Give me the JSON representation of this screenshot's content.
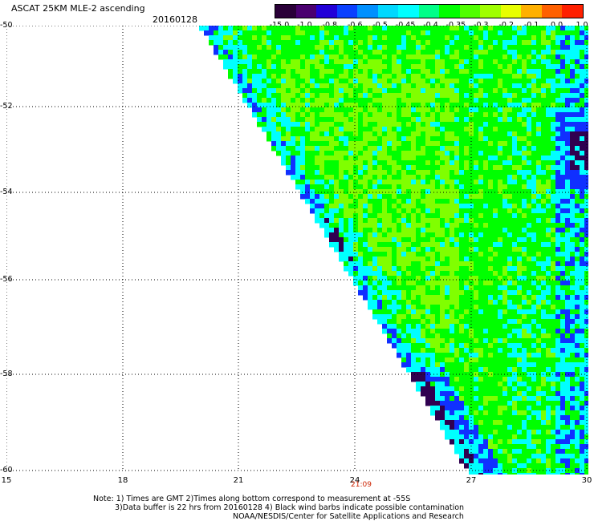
{
  "header": {
    "title": "ASCAT 25KM MLE-2 ascending",
    "date": "20160128"
  },
  "colorbar": {
    "colors": [
      "#2a0038",
      "#4a0070",
      "#2200d8",
      "#0a40ff",
      "#0090ff",
      "#00d8ff",
      "#00ffff",
      "#00ff88",
      "#00ff00",
      "#50ff00",
      "#a0ff00",
      "#e8ff00",
      "#ffb000",
      "#ff6000",
      "#ff2000"
    ],
    "labels": [
      "-15.0",
      "-1.0",
      "-0.8",
      "-0.6",
      "-0.5",
      "-0.45",
      "-0.4",
      "-0.35",
      "-0.3",
      "-0.2",
      "-0.1",
      "0.0",
      "1.0"
    ]
  },
  "axes": {
    "y_ticks": [
      "-50",
      "-52",
      "-54",
      "-56",
      "-58",
      "-60"
    ],
    "x_ticks": [
      "15",
      "18",
      "21",
      "24",
      "27",
      "30"
    ],
    "time_label": "21:09"
  },
  "notes": {
    "line1": "Note: 1) Times are GMT 2)Times along bottom correspond to measurement at -55S",
    "line2": "3)Data buffer is 22 hrs from 20160128 4) Black wind barbs indicate possible contamination",
    "line3": "NOAA/NESDIS/Center for Satellite Applications and Research"
  },
  "palette": {
    "green": "#00ff00",
    "light_green": "#80ff00",
    "cyan": "#00ffff",
    "blue": "#1030ff",
    "dark_purple": "#300050"
  }
}
